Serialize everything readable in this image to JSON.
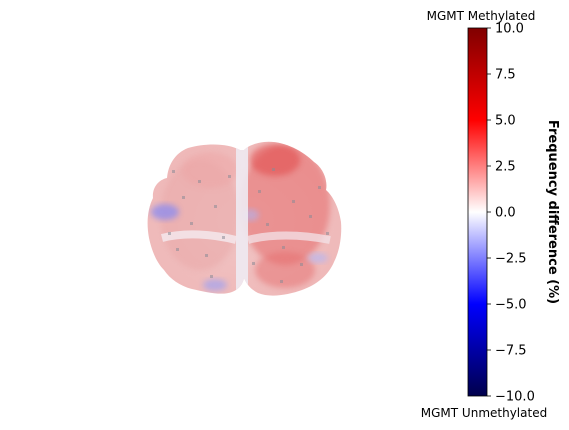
{
  "chart_data": {
    "type": "heatmap",
    "title": "",
    "subject": "axial brain map",
    "colormap": "seismic",
    "colorbar": {
      "label": "Frequency difference (%)",
      "top_annotation": "MGMT Methylated",
      "bottom_annotation": "MGMT Unmethylated",
      "range": [
        -10.0,
        10.0
      ],
      "ticks": [
        10.0,
        7.5,
        5.0,
        2.5,
        0.0,
        -2.5,
        -5.0,
        -7.5,
        -10.0
      ],
      "tick_labels": [
        "10.0",
        "7.5",
        "5.0",
        "2.5",
        "0.0",
        "−2.5",
        "−5.0",
        "−7.5",
        "−10.0"
      ],
      "colors": {
        "max": "#800000",
        "mid_high": "#ff0000",
        "zero": "#ffffff",
        "mid_low": "#0000ff",
        "min": "#00004c"
      }
    },
    "map_values": {
      "left_hemisphere_mean": 1.6,
      "right_hemisphere_mean": 3.0,
      "midline": 0.0,
      "left_lateral_min": -2.5,
      "right_frontal_max": 4.0
    }
  }
}
